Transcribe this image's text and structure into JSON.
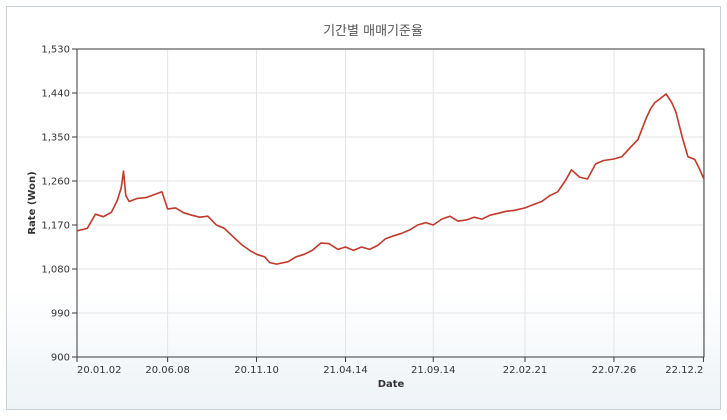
{
  "chart_data": {
    "type": "line",
    "title": "기간별 매매기준율",
    "xlabel": "Date",
    "ylabel": "Rate (Won)",
    "ylim": [
      900,
      1530
    ],
    "yticks": [
      900,
      990,
      1080,
      1170,
      1260,
      1350,
      1440,
      1530
    ],
    "ytick_labels": [
      "900",
      "990",
      "1,080",
      "1,170",
      "1,260",
      "1,350",
      "1,440",
      "1,530"
    ],
    "xlim": [
      "2020-01-02",
      "2022-12-30"
    ],
    "xticks": [
      "2020-01-02",
      "2020-06-08",
      "2020-11-10",
      "2021-04-14",
      "2021-09-14",
      "2022-02-21",
      "2022-07-26",
      "2022-12-29"
    ],
    "xtick_labels": [
      "20.01.02",
      "20.06.08",
      "20.11.10",
      "21.04.14",
      "21.09.14",
      "22.02.21",
      "22.07.26",
      "22.12.2"
    ],
    "grid": true,
    "line_color": "#c0392b",
    "series": [
      {
        "x": [
          "2020-01-02",
          "2020-01-20",
          "2020-02-03",
          "2020-02-17",
          "2020-03-02",
          "2020-03-12",
          "2020-03-19",
          "2020-03-23",
          "2020-03-27",
          "2020-04-02",
          "2020-04-15",
          "2020-05-01",
          "2020-05-15",
          "2020-05-29",
          "2020-06-08",
          "2020-06-22",
          "2020-07-06",
          "2020-07-20",
          "2020-08-03",
          "2020-08-17",
          "2020-09-01",
          "2020-09-15",
          "2020-10-01",
          "2020-10-15",
          "2020-10-29",
          "2020-11-10",
          "2020-11-24",
          "2020-12-03",
          "2020-12-15",
          "2021-01-04",
          "2021-01-18",
          "2021-02-01",
          "2021-02-15",
          "2021-03-02",
          "2021-03-16",
          "2021-04-01",
          "2021-04-14",
          "2021-04-28",
          "2021-05-12",
          "2021-05-26",
          "2021-06-09",
          "2021-06-23",
          "2021-07-07",
          "2021-07-21",
          "2021-08-04",
          "2021-08-18",
          "2021-09-01",
          "2021-09-14",
          "2021-09-29",
          "2021-10-13",
          "2021-10-27",
          "2021-11-10",
          "2021-11-24",
          "2021-12-08",
          "2021-12-22",
          "2022-01-05",
          "2022-01-19",
          "2022-02-03",
          "2022-02-21",
          "2022-03-08",
          "2022-03-22",
          "2022-04-05",
          "2022-04-19",
          "2022-05-03",
          "2022-05-13",
          "2022-05-27",
          "2022-06-10",
          "2022-06-24",
          "2022-07-08",
          "2022-07-26",
          "2022-08-09",
          "2022-08-23",
          "2022-09-06",
          "2022-09-20",
          "2022-09-28",
          "2022-10-05",
          "2022-10-14",
          "2022-10-25",
          "2022-11-04",
          "2022-11-11",
          "2022-11-22",
          "2022-12-02",
          "2022-12-14",
          "2022-12-22",
          "2022-12-30"
        ],
        "values": [
          1158,
          1163,
          1192,
          1187,
          1196,
          1220,
          1246,
          1280,
          1230,
          1218,
          1224,
          1226,
          1232,
          1238,
          1203,
          1205,
          1195,
          1190,
          1186,
          1188,
          1170,
          1163,
          1145,
          1130,
          1118,
          1110,
          1105,
          1093,
          1090,
          1095,
          1105,
          1110,
          1118,
          1133,
          1132,
          1120,
          1125,
          1118,
          1125,
          1120,
          1128,
          1142,
          1148,
          1153,
          1160,
          1170,
          1175,
          1170,
          1182,
          1188,
          1178,
          1180,
          1186,
          1182,
          1190,
          1194,
          1198,
          1200,
          1205,
          1212,
          1218,
          1230,
          1238,
          1262,
          1283,
          1268,
          1264,
          1295,
          1302,
          1305,
          1310,
          1328,
          1345,
          1388,
          1408,
          1420,
          1428,
          1438,
          1420,
          1401,
          1350,
          1310,
          1304,
          1285,
          1264
        ]
      }
    ]
  }
}
